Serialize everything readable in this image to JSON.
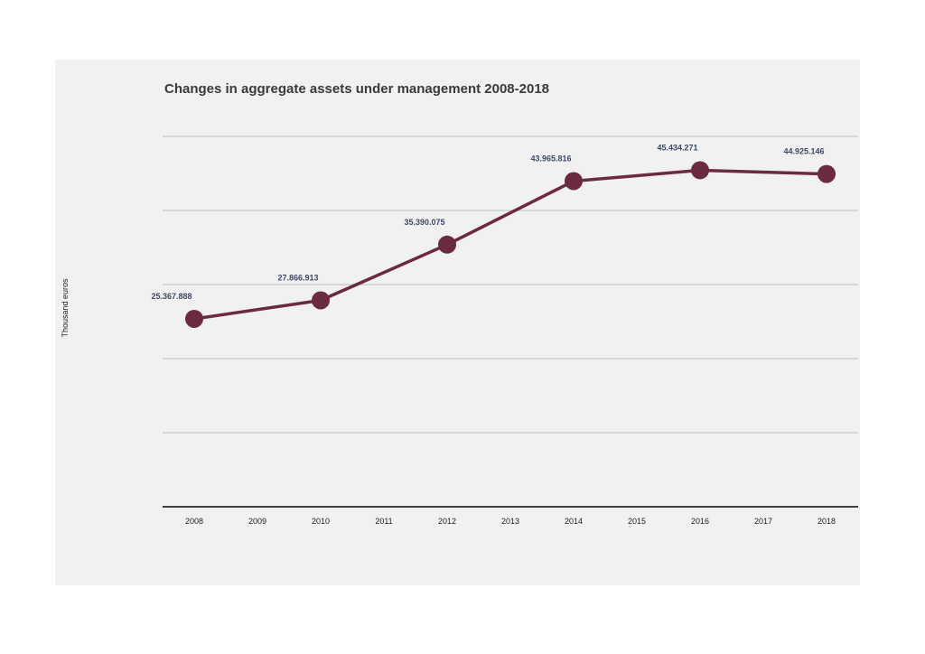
{
  "chart_data": {
    "type": "line",
    "title": "Changes in aggregate assets under management 2008-2018",
    "xlabel": "",
    "ylabel": "Thousand euros",
    "x": [
      "2008",
      "2009",
      "2010",
      "2011",
      "2012",
      "2013",
      "2014",
      "2015",
      "2016",
      "2017",
      "2018"
    ],
    "series": [
      {
        "points": [
          {
            "x": "2008",
            "y": 25367888,
            "label": "25.367.888"
          },
          {
            "x": "2010",
            "y": 27866913,
            "label": "27.866.913"
          },
          {
            "x": "2012",
            "y": 35390075,
            "label": "35.390.075"
          },
          {
            "x": "2014",
            "y": 43965816,
            "label": "43.965.816"
          },
          {
            "x": "2016",
            "y": 45434271,
            "label": "45.434.271"
          },
          {
            "x": "2018",
            "y": 44925146,
            "label": "44.925.146"
          }
        ]
      }
    ],
    "ylim": [
      0,
      50000000
    ],
    "y_gridline_step": 10000000,
    "y_tick_labels_shown": false,
    "grid": true,
    "legend": "none",
    "colors": {
      "line": "#6b2a40",
      "marker": "#6b2a40",
      "data_label": "#3b4a66",
      "grid": "#c8c8c8",
      "axis": "#404040",
      "panel_background": "#f1f1f1"
    }
  }
}
